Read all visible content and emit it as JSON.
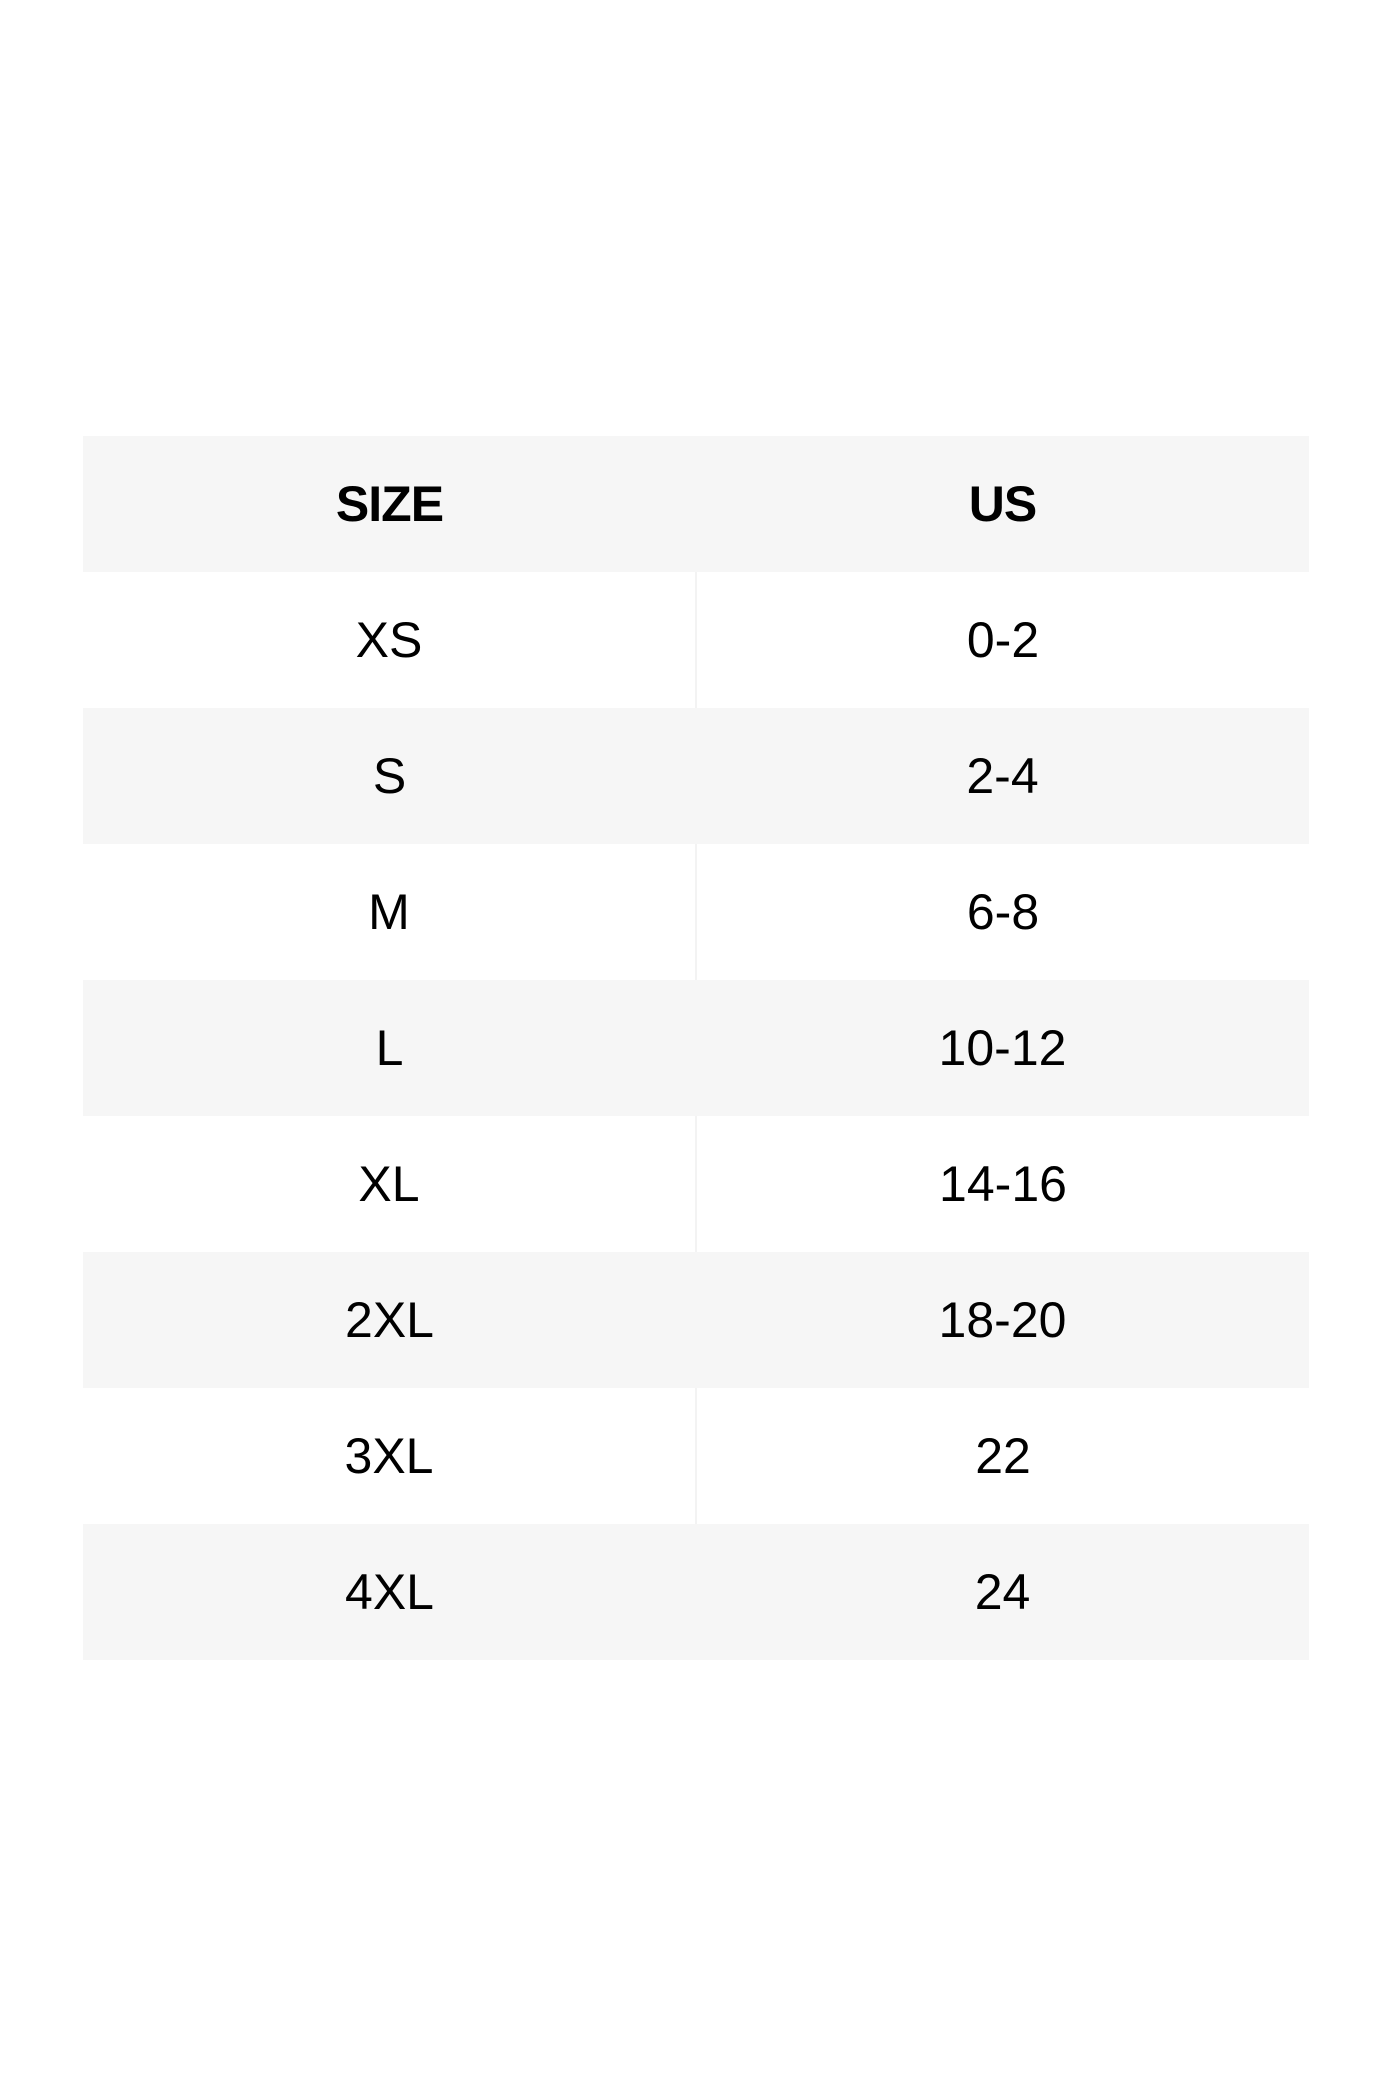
{
  "table": {
    "headers": [
      "SIZE",
      "US"
    ],
    "rows": [
      [
        "XS",
        "0-2"
      ],
      [
        "S",
        "2-4"
      ],
      [
        "M",
        "6-8"
      ],
      [
        "L",
        "10-12"
      ],
      [
        "XL",
        "14-16"
      ],
      [
        "2XL",
        "18-20"
      ],
      [
        "3XL",
        "22"
      ],
      [
        "4XL",
        "24"
      ]
    ]
  },
  "colors": {
    "header_bg": "#f6f6f6",
    "stripe_bg": "#f6f6f6",
    "text": "#000000"
  }
}
